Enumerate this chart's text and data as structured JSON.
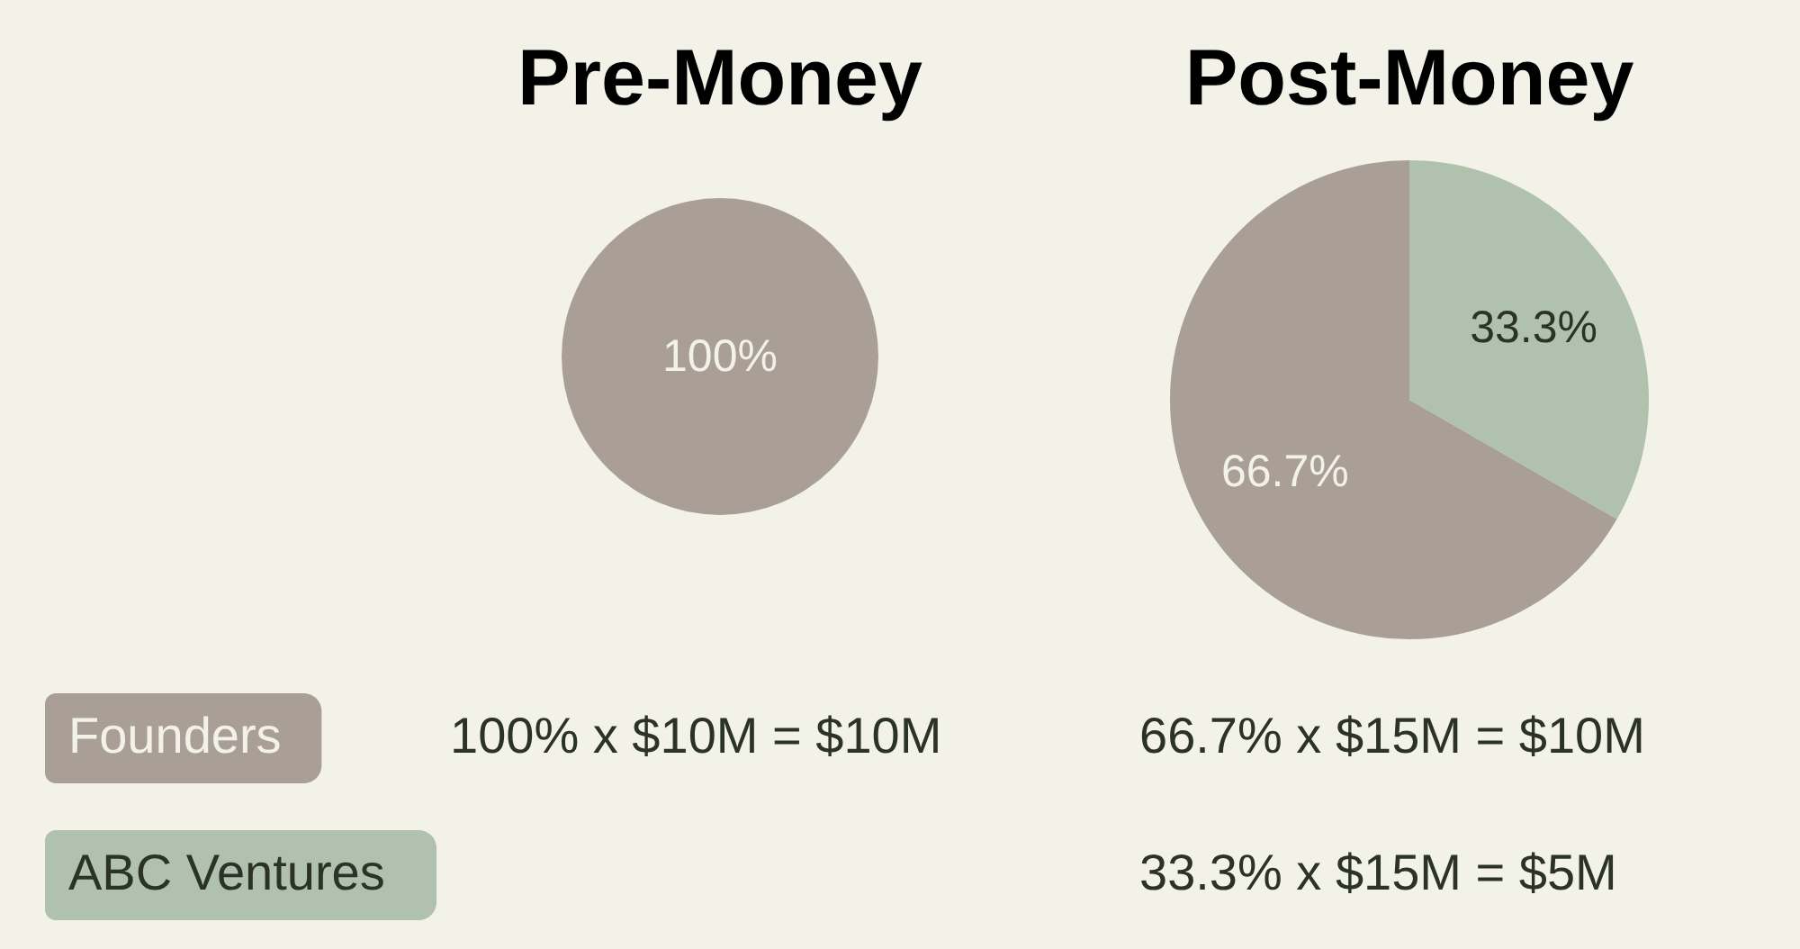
{
  "chart_data": [
    {
      "type": "pie",
      "title": "Pre-Money",
      "categories": [
        null
      ],
      "values": [
        100
      ],
      "colors": [
        "#aa9f96"
      ],
      "value_labels": [
        "100%"
      ],
      "annotations": [
        "100% x $10M = $10M"
      ]
    },
    {
      "type": "pie",
      "title": "Post-Money",
      "categories": [
        "Founders",
        "ABC Ventures"
      ],
      "values": [
        66.7,
        33.3
      ],
      "colors": [
        "#aa9f96",
        "#b0c1ad"
      ],
      "value_labels": [
        "66.7%",
        "33.3%"
      ],
      "legend": "bottom left",
      "annotations": [
        "66.7% x $15M = $10M",
        "33.3% x $15M = $5M"
      ]
    }
  ]
}
